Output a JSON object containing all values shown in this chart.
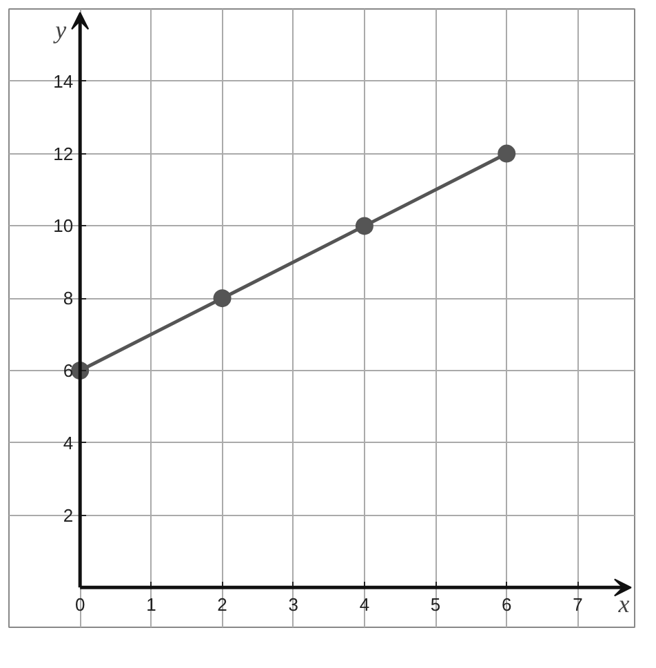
{
  "chart_data": {
    "type": "line",
    "xlabel": "x",
    "ylabel": "y",
    "x": [
      0,
      2,
      4,
      6
    ],
    "series": [
      {
        "color": "#555555",
        "values": [
          6,
          8,
          10,
          12
        ]
      }
    ],
    "xlim": [
      -1,
      7.8
    ],
    "ylim": [
      -1.1,
      16
    ],
    "xticks": [
      {
        "value": 0,
        "label": "0"
      },
      1,
      2,
      3,
      4,
      5,
      6,
      7
    ],
    "yticks": [
      2,
      4,
      6,
      8,
      10,
      12,
      14
    ],
    "grid": true,
    "marker": "circle",
    "line_style": "solid"
  }
}
